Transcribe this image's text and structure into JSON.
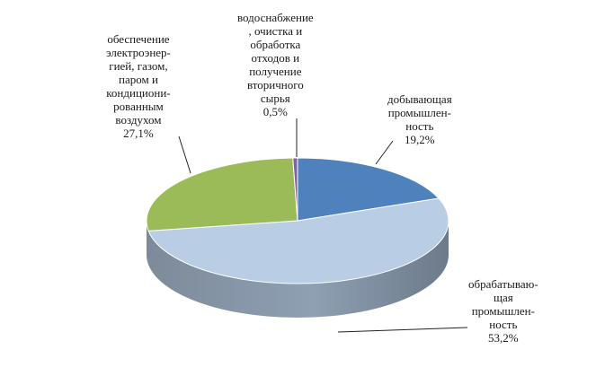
{
  "chart_data": {
    "type": "pie",
    "title": "",
    "slices": [
      {
        "label_lines": [
          "добывающая",
          "промышлен-",
          "ность"
        ],
        "value": 19.2,
        "value_label": "19,2%",
        "color": "#4f81bd"
      },
      {
        "label_lines": [
          "обрабатываю-",
          "щая",
          "промышлен-",
          "ность"
        ],
        "value": 53.2,
        "value_label": "53,2%",
        "color": "#b9cde5"
      },
      {
        "label_lines": [
          "обеспечение",
          "электроэнер-",
          "гией, газом,",
          "паром и",
          "кондициони-",
          "рованным",
          "воздухом"
        ],
        "value": 27.1,
        "value_label": "27,1%",
        "color": "#9bbb59"
      },
      {
        "label_lines": [
          "водоснабжение",
          ", очистка и",
          "обработка",
          "отходов  и",
          "получение",
          "вторичного",
          "сырья"
        ],
        "value": 0.5,
        "value_label": "0,5%",
        "color": "#8064a2"
      }
    ]
  }
}
